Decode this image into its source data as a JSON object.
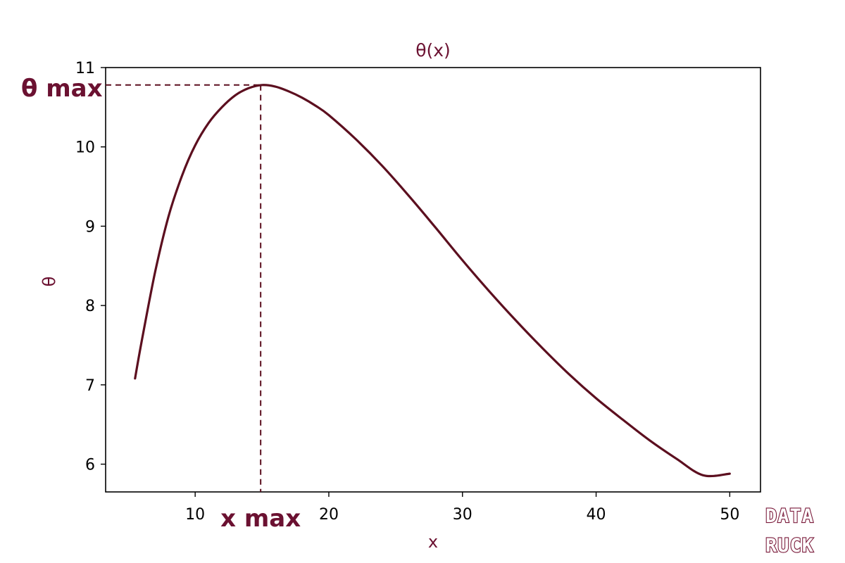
{
  "chart_data": {
    "type": "line",
    "title": "θ(x)",
    "xlabel": "x",
    "ylabel": "θ",
    "xlim": [
      3.3,
      52.3
    ],
    "ylim": [
      5.65,
      11.0
    ],
    "x_ticks": [
      10,
      20,
      30,
      40,
      50
    ],
    "y_ticks": [
      6,
      7,
      8,
      9,
      10,
      11
    ],
    "grid": false,
    "series": [
      {
        "x": [
          5.5,
          6,
          7,
          8,
          9,
          10,
          11,
          12,
          13,
          14,
          15,
          16,
          17,
          18,
          19,
          20,
          22,
          24,
          26,
          28,
          30,
          32,
          34,
          36,
          38,
          40,
          42,
          44,
          46,
          48,
          50
        ],
        "y": [
          7.08,
          7.55,
          8.42,
          9.12,
          9.63,
          10.02,
          10.3,
          10.5,
          10.65,
          10.74,
          10.78,
          10.76,
          10.7,
          10.62,
          10.52,
          10.4,
          10.1,
          9.76,
          9.38,
          8.98,
          8.57,
          8.18,
          7.81,
          7.46,
          7.13,
          6.83,
          6.56,
          6.3,
          6.07,
          5.86,
          5.88
        ],
        "color": "#5c0f1f"
      }
    ],
    "annotations": [
      {
        "label": "θ max",
        "axis": "y",
        "x": 14.9,
        "y": 10.78
      },
      {
        "label": "x max",
        "axis": "x",
        "x": 14.9,
        "y": 10.78
      }
    ]
  },
  "watermark": {
    "line1": "DATA",
    "line2": "RUCK"
  },
  "colors": {
    "line": "#5c0f1f",
    "text_accent": "#6b1131",
    "axis": "#000000",
    "watermark_outline": "#7a1a3a"
  }
}
